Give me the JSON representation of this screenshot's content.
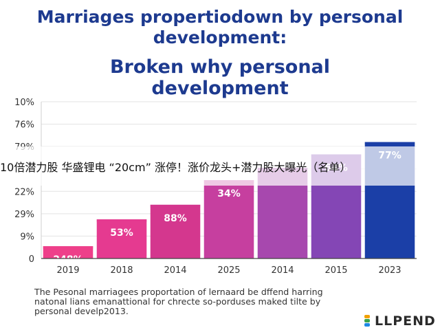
{
  "header": {
    "title_line1": "Marriages propertiodown by personal",
    "title_line2": "development:",
    "subtitle_line1": "Broken why personal",
    "subtitle_line2": "development"
  },
  "chart_data": {
    "type": "bar",
    "categories": [
      "2019",
      "2018",
      "2014",
      "2025",
      "2014",
      "2015",
      "2023"
    ],
    "values": [
      11,
      35,
      48,
      70,
      81,
      93,
      104
    ],
    "data_labels": [
      "248%",
      "53%",
      "88%",
      "34%",
      "",
      "64%",
      "77%"
    ],
    "y_tick_labels": [
      "0",
      "9%",
      "29%",
      "22%",
      "",
      "79%",
      "76%",
      "10%"
    ],
    "colors": [
      "#ee3f8a",
      "#e53a90",
      "#d4378e",
      "#c63f9f",
      "#a748ae",
      "#8446b5",
      "#1b3fa7"
    ],
    "ylim": [
      0,
      140
    ],
    "grid": true
  },
  "caption": {
    "line1": "The Pesonal marriagees proportation of lernaard be dffend harring",
    "line2": "natonal lians emanattional for chrecte so-porduses maked tilte by",
    "line3": "personal develp2013."
  },
  "overlay": {
    "text": "10倍潜力股 华盛锂电 “20cm” 涨停！涨价龙头+潜力股大曝光（名单）"
  },
  "brand": {
    "name": "LLPEND",
    "colors": [
      "#f0a000",
      "#3aa54b",
      "#1e88e5"
    ]
  }
}
